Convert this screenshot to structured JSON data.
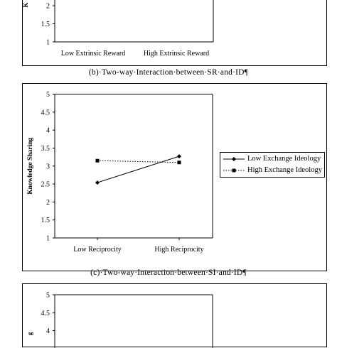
{
  "caption_b": "(b)·Two-way·Interaction·between·SR·and·ID¶",
  "caption_c": "(c)·Two-way·Interaction·between·SI·and·ID¶",
  "chart_data": [
    {
      "type": "line",
      "title": "",
      "ylabel": "",
      "categories": [
        "Low Extrinsic Reward",
        "High Extrinsic Reward"
      ],
      "ylim": [
        1,
        5
      ],
      "y_ticks_visible": [
        "2",
        "1.5",
        "1"
      ],
      "series": []
    },
    {
      "type": "line",
      "title": "",
      "xlabel": "",
      "ylabel": "Knowledge Sharing",
      "categories": [
        "Low Reciprocity",
        "High Reciprocity"
      ],
      "ylim": [
        1,
        5
      ],
      "y_ticks": [
        "5",
        "4.5",
        "4",
        "3.5",
        "3",
        "2.5",
        "2",
        "1.5",
        "1"
      ],
      "legend_position": "right",
      "series": [
        {
          "name": "Low Exchange Ideology",
          "values": [
            2.54,
            3.27
          ],
          "style": "solid",
          "marker": "diamond",
          "color": "#000000"
        },
        {
          "name": "High Exchange Ideology",
          "values": [
            3.15,
            3.1
          ],
          "style": "dotted",
          "marker": "square",
          "color": "#000000"
        }
      ]
    },
    {
      "type": "line",
      "title": "",
      "ylabel": "",
      "ylim": [
        1,
        5
      ],
      "y_ticks_visible": [
        "5",
        "4.5",
        "4"
      ],
      "series": []
    }
  ]
}
